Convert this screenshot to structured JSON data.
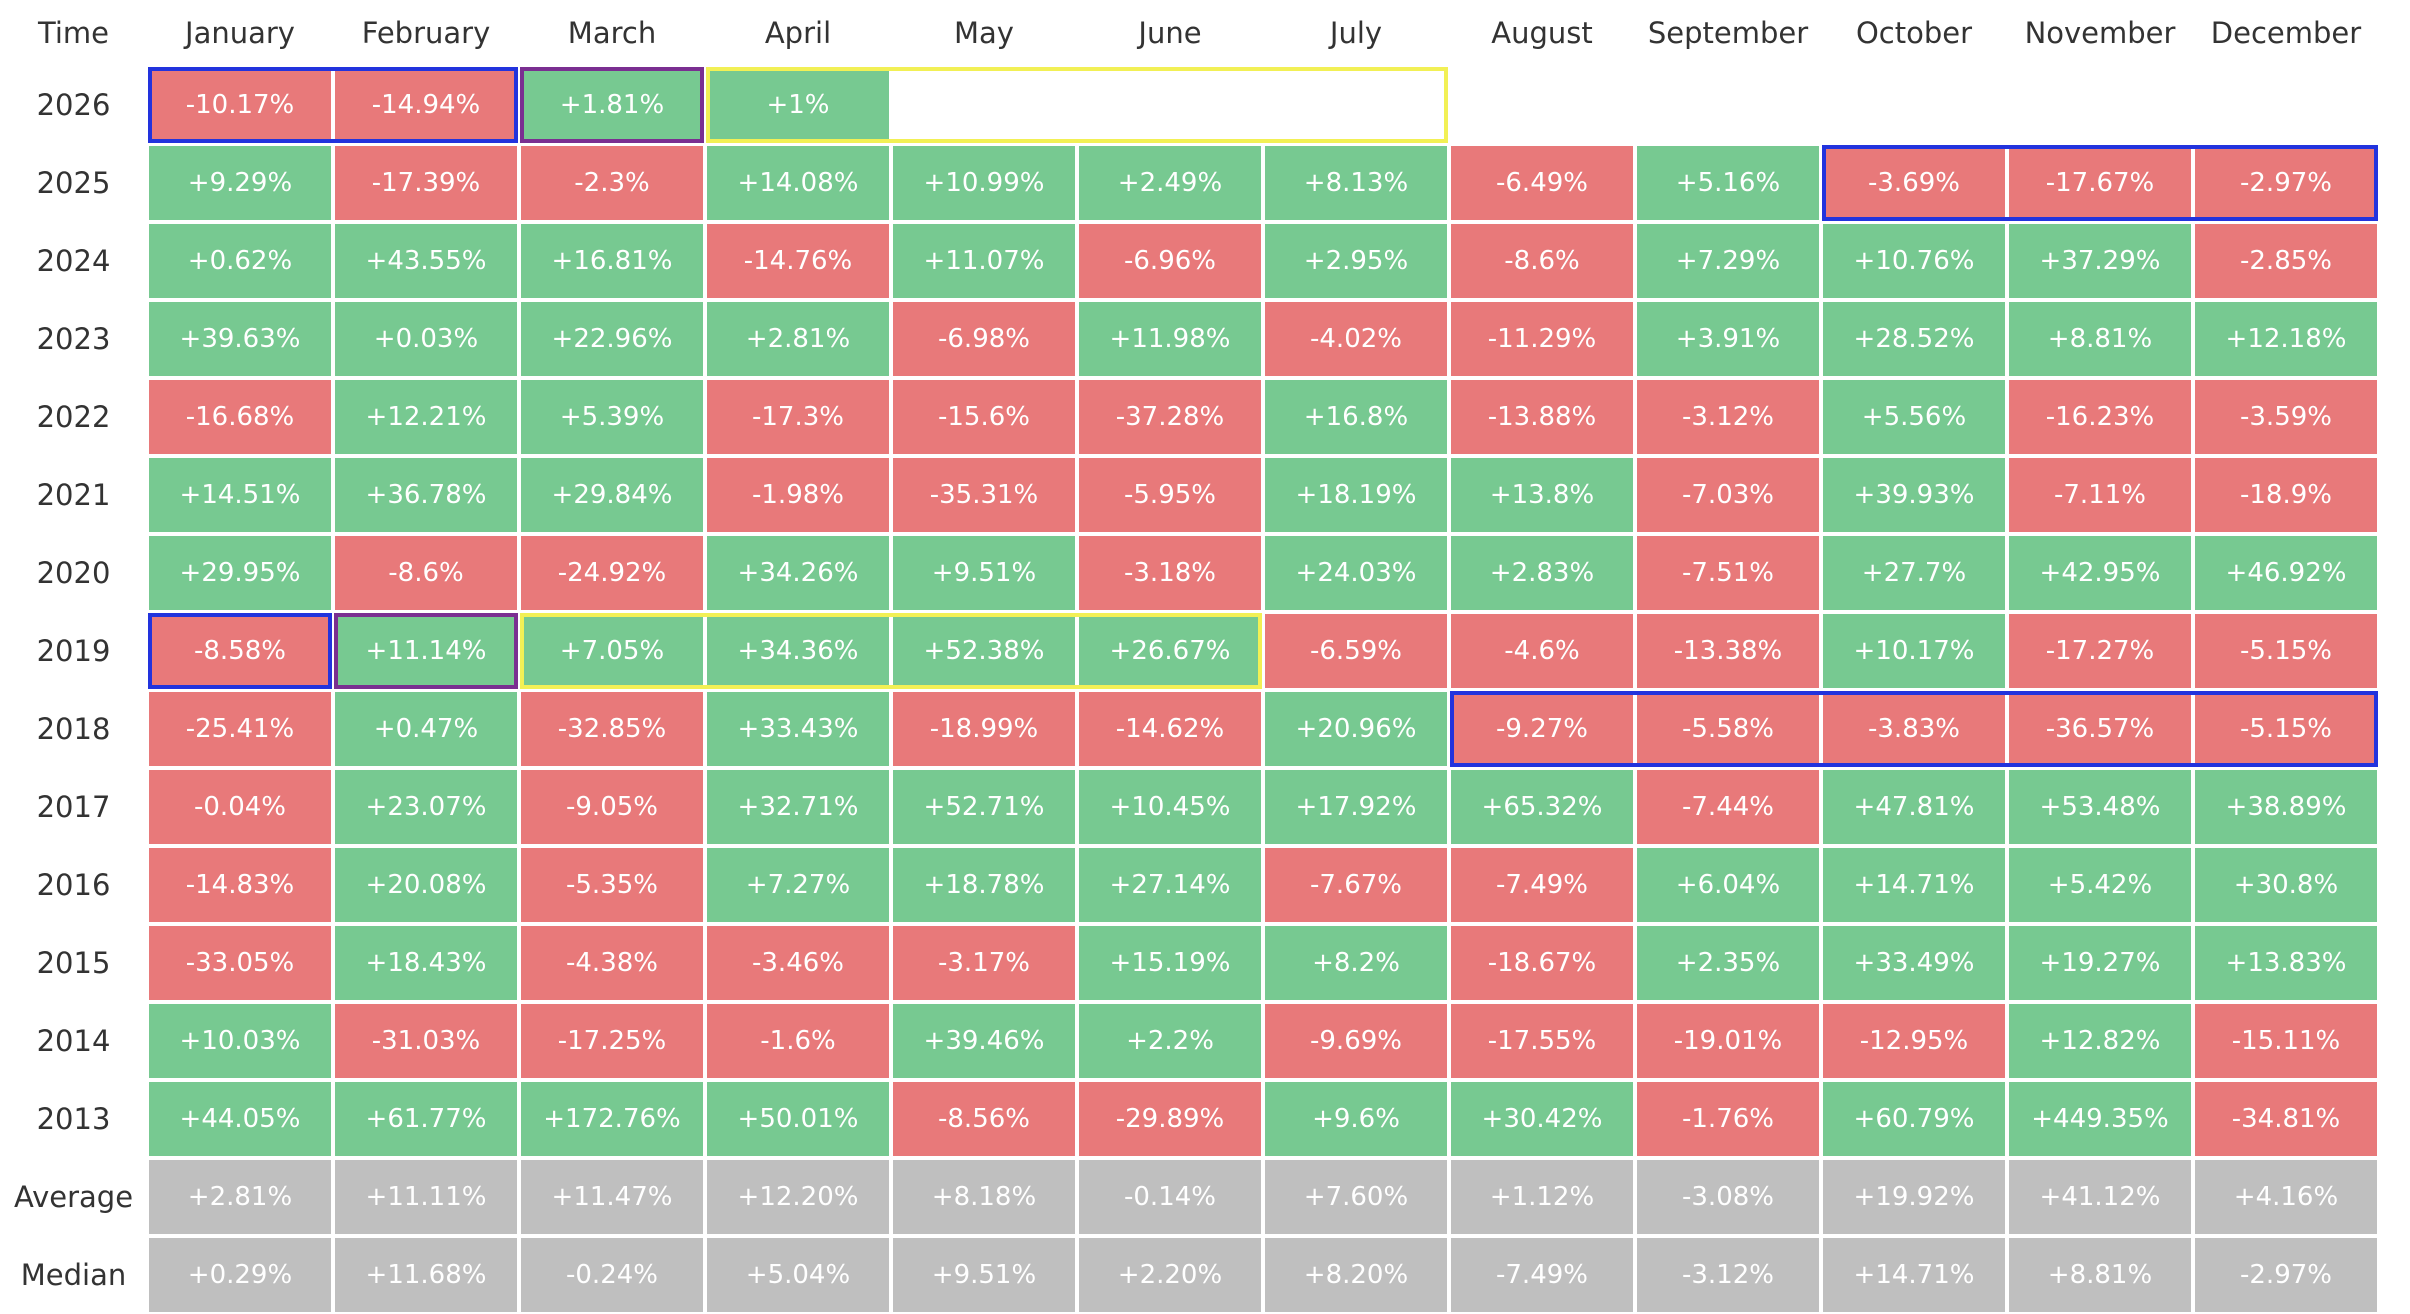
{
  "table": {
    "header": [
      "Time",
      "January",
      "February",
      "March",
      "April",
      "May",
      "June",
      "July",
      "August",
      "September",
      "October",
      "November",
      "December"
    ],
    "rows": [
      {
        "label": "2026",
        "cells": [
          "-10.17%",
          "-14.94%",
          "+1.81%",
          "+1%"
        ]
      },
      {
        "label": "2025",
        "cells": [
          "+9.29%",
          "-17.39%",
          "-2.3%",
          "+14.08%",
          "+10.99%",
          "+2.49%",
          "+8.13%",
          "-6.49%",
          "+5.16%",
          "-3.69%",
          "-17.67%",
          "-2.97%"
        ]
      },
      {
        "label": "2024",
        "cells": [
          "+0.62%",
          "+43.55%",
          "+16.81%",
          "-14.76%",
          "+11.07%",
          "-6.96%",
          "+2.95%",
          "-8.6%",
          "+7.29%",
          "+10.76%",
          "+37.29%",
          "-2.85%"
        ]
      },
      {
        "label": "2023",
        "cells": [
          "+39.63%",
          "+0.03%",
          "+22.96%",
          "+2.81%",
          "-6.98%",
          "+11.98%",
          "-4.02%",
          "-11.29%",
          "+3.91%",
          "+28.52%",
          "+8.81%",
          "+12.18%"
        ]
      },
      {
        "label": "2022",
        "cells": [
          "-16.68%",
          "+12.21%",
          "+5.39%",
          "-17.3%",
          "-15.6%",
          "-37.28%",
          "+16.8%",
          "-13.88%",
          "-3.12%",
          "+5.56%",
          "-16.23%",
          "-3.59%"
        ]
      },
      {
        "label": "2021",
        "cells": [
          "+14.51%",
          "+36.78%",
          "+29.84%",
          "-1.98%",
          "-35.31%",
          "-5.95%",
          "+18.19%",
          "+13.8%",
          "-7.03%",
          "+39.93%",
          "-7.11%",
          "-18.9%"
        ]
      },
      {
        "label": "2020",
        "cells": [
          "+29.95%",
          "-8.6%",
          "-24.92%",
          "+34.26%",
          "+9.51%",
          "-3.18%",
          "+24.03%",
          "+2.83%",
          "-7.51%",
          "+27.7%",
          "+42.95%",
          "+46.92%"
        ]
      },
      {
        "label": "2019",
        "cells": [
          "-8.58%",
          "+11.14%",
          "+7.05%",
          "+34.36%",
          "+52.38%",
          "+26.67%",
          "-6.59%",
          "-4.6%",
          "-13.38%",
          "+10.17%",
          "-17.27%",
          "-5.15%"
        ]
      },
      {
        "label": "2018",
        "cells": [
          "-25.41%",
          "+0.47%",
          "-32.85%",
          "+33.43%",
          "-18.99%",
          "-14.62%",
          "+20.96%",
          "-9.27%",
          "-5.58%",
          "-3.83%",
          "-36.57%",
          "-5.15%"
        ]
      },
      {
        "label": "2017",
        "cells": [
          "-0.04%",
          "+23.07%",
          "-9.05%",
          "+32.71%",
          "+52.71%",
          "+10.45%",
          "+17.92%",
          "+65.32%",
          "-7.44%",
          "+47.81%",
          "+53.48%",
          "+38.89%"
        ]
      },
      {
        "label": "2016",
        "cells": [
          "-14.83%",
          "+20.08%",
          "-5.35%",
          "+7.27%",
          "+18.78%",
          "+27.14%",
          "-7.67%",
          "-7.49%",
          "+6.04%",
          "+14.71%",
          "+5.42%",
          "+30.8%"
        ]
      },
      {
        "label": "2015",
        "cells": [
          "-33.05%",
          "+18.43%",
          "-4.38%",
          "-3.46%",
          "-3.17%",
          "+15.19%",
          "+8.2%",
          "-18.67%",
          "+2.35%",
          "+33.49%",
          "+19.27%",
          "+13.83%"
        ]
      },
      {
        "label": "2014",
        "cells": [
          "+10.03%",
          "-31.03%",
          "-17.25%",
          "-1.6%",
          "+39.46%",
          "+2.2%",
          "-9.69%",
          "-17.55%",
          "-19.01%",
          "-12.95%",
          "+12.82%",
          "-15.11%"
        ]
      },
      {
        "label": "2013",
        "cells": [
          "+44.05%",
          "+61.77%",
          "+172.76%",
          "+50.01%",
          "-8.56%",
          "-29.89%",
          "+9.6%",
          "+30.42%",
          "-1.76%",
          "+60.79%",
          "+449.35%",
          "-34.81%"
        ]
      }
    ],
    "summary": [
      {
        "label": "Average",
        "cells": [
          "+2.81%",
          "+11.11%",
          "+11.47%",
          "+12.20%",
          "+8.18%",
          "-0.14%",
          "+7.60%",
          "+1.12%",
          "-3.08%",
          "+19.92%",
          "+41.12%",
          "+4.16%"
        ]
      },
      {
        "label": "Median",
        "cells": [
          "+0.29%",
          "+11.68%",
          "-0.24%",
          "+5.04%",
          "+9.51%",
          "+2.20%",
          "+8.20%",
          "-7.49%",
          "-3.12%",
          "+14.71%",
          "+8.81%",
          "-2.97%"
        ]
      }
    ],
    "annotation": "?"
  }
}
